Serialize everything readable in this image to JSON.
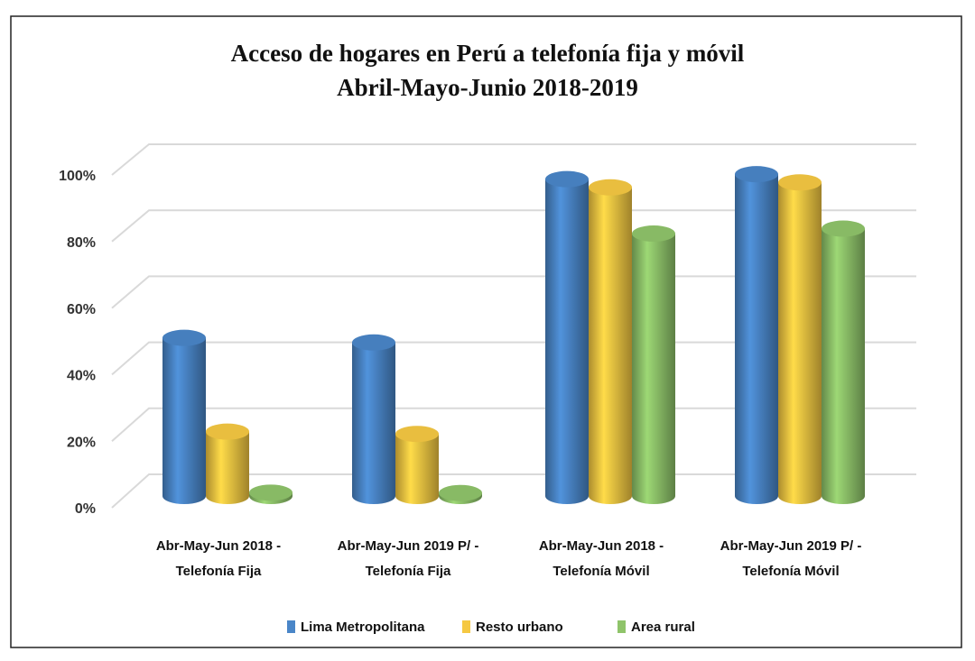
{
  "chart_data": {
    "type": "bar3d",
    "title": "Acceso de hogares en Perú a telefonía fija y móvil",
    "subtitle": "Abril-Mayo-Junio 2018-2019",
    "categories": [
      [
        "Abr-May-Jun 2018 -",
        "Telefonía Fija"
      ],
      [
        "Abr-May-Jun 2019 P/ -",
        "Telefonía Fija"
      ],
      [
        "Abr-May-Jun 2018 -",
        "Telefonía Móvil"
      ],
      [
        "Abr-May-Jun 2019 P/ -",
        "Telefonía Móvil"
      ]
    ],
    "series": [
      {
        "name": "Lima Metropolitana",
        "color": "#4a86c8",
        "values": [
          47.9,
          46.5,
          96.0,
          97.5
        ]
      },
      {
        "name": "Resto urbano",
        "color": "#f5c842",
        "values": [
          19.5,
          18.8,
          93.5,
          95.0
        ]
      },
      {
        "name": "Area rural",
        "color": "#8fc46a",
        "values": [
          1.0,
          0.9,
          79.5,
          81.0
        ]
      }
    ],
    "ylim": [
      0,
      100
    ],
    "yticks": [
      {
        "value": 0,
        "label": "0%"
      },
      {
        "value": 20,
        "label": "20%"
      },
      {
        "value": 40,
        "label": "40%"
      },
      {
        "value": 60,
        "label": "60%"
      },
      {
        "value": 80,
        "label": "80%"
      },
      {
        "value": 100,
        "label": "100%"
      }
    ],
    "grid": true,
    "legend": "bottom"
  }
}
